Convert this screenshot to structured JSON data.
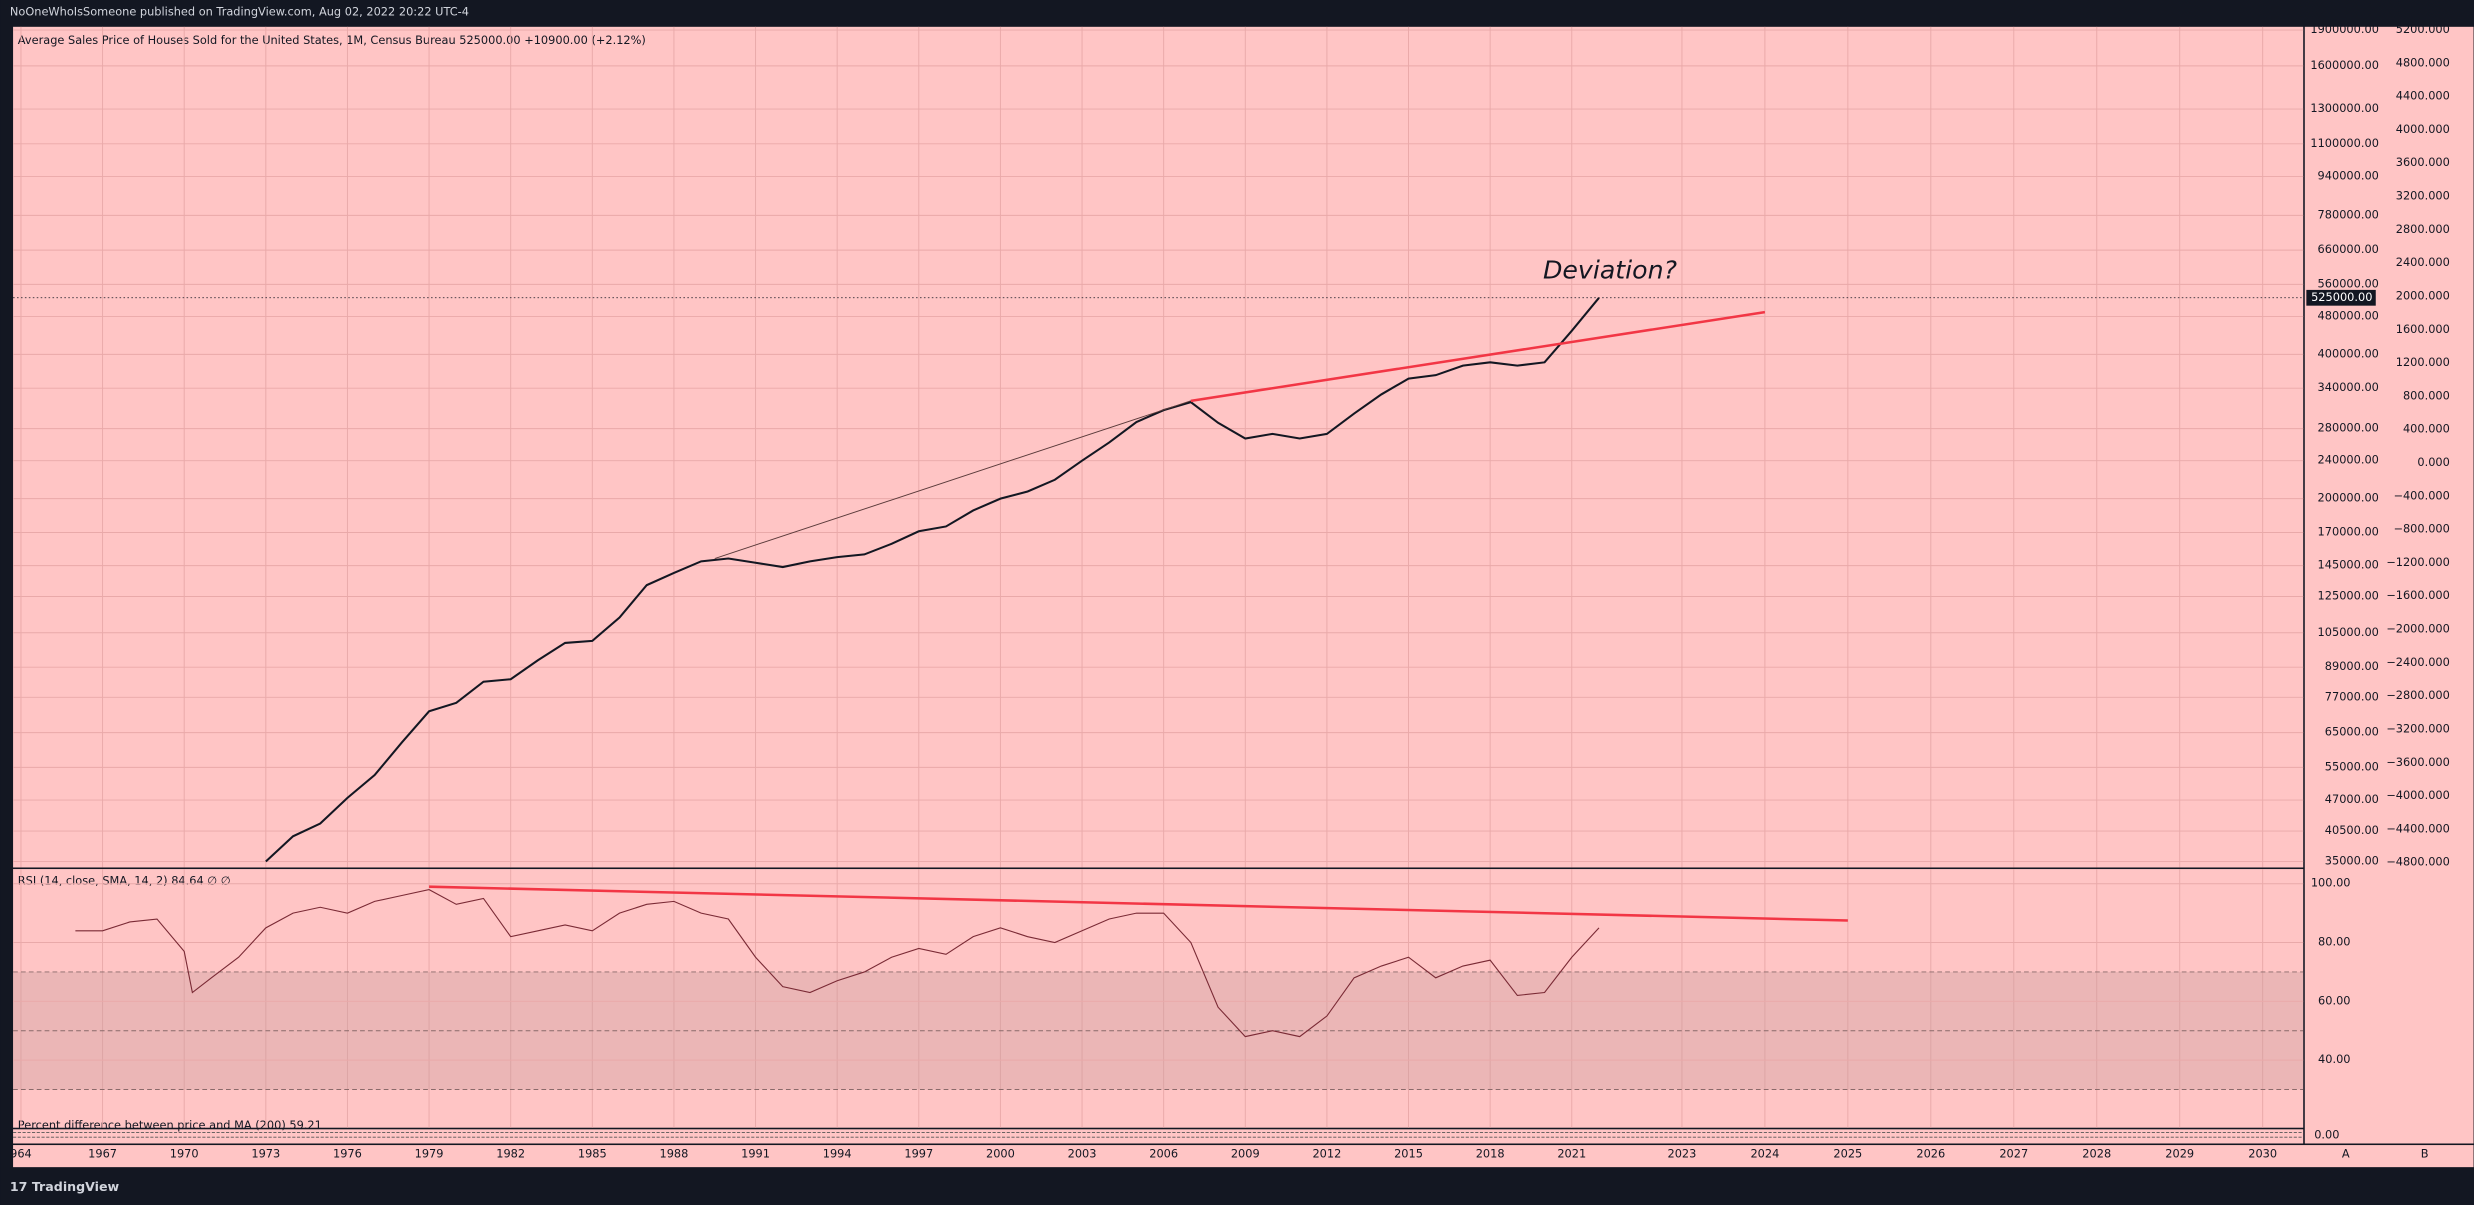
{
  "header": {
    "publisher": "NoOneWhoIsSomeone published on TradingView.com, Aug 02, 2022 20:22 UTC-4"
  },
  "footer": {
    "brand": "17 TradingView",
    "buttons": [
      "A",
      "B"
    ]
  },
  "percent_pane": {
    "title": "Percent difference between price and MA (200)  59.21",
    "yticks": [
      {
        "value": 0,
        "label": "0.00"
      }
    ]
  },
  "chart_data": [
    {
      "type": "line",
      "title": "Average Sales Price of Houses Sold for the United States, 1M, Census Bureau  525000.00  +10900.00 (+2.12%)",
      "log_scale": true,
      "grid": true,
      "color": "#131722",
      "x": [
        1973,
        1974,
        1975,
        1976,
        1977,
        1978,
        1979,
        1980,
        1981,
        1982,
        1983,
        1984,
        1985,
        1986,
        1987,
        1988,
        1989,
        1990,
        1991,
        1992,
        1993,
        1994,
        1995,
        1996,
        1997,
        1998,
        1999,
        2000,
        2001,
        2002,
        2003,
        2004,
        2005,
        2006,
        2007,
        2008,
        2009,
        2010,
        2011,
        2012,
        2013,
        2014,
        2015,
        2016,
        2017,
        2018,
        2019,
        2020,
        2021,
        2022
      ],
      "values": [
        35000,
        39500,
        42000,
        47500,
        53000,
        62000,
        72000,
        75000,
        83000,
        84000,
        92000,
        100000,
        101000,
        113000,
        132000,
        140000,
        148000,
        150000,
        147000,
        144000,
        148000,
        151000,
        153000,
        161000,
        171000,
        175000,
        189000,
        200000,
        207000,
        219000,
        240000,
        262000,
        289000,
        306000,
        318000,
        288000,
        267000,
        273000,
        267000,
        273000,
        301000,
        330000,
        356000,
        362000,
        379000,
        385000,
        379000,
        385000,
        448000,
        525000
      ],
      "ylim": [
        34000,
        1930000
      ],
      "yticks": [
        {
          "value": 1900000,
          "label": "1900000.00"
        },
        {
          "value": 1600000,
          "label": "1600000.00"
        },
        {
          "value": 1300000,
          "label": "1300000.00"
        },
        {
          "value": 1100000,
          "label": "1100000.00"
        },
        {
          "value": 940000,
          "label": "940000.00"
        },
        {
          "value": 780000,
          "label": "780000.00"
        },
        {
          "value": 660000,
          "label": "660000.00"
        },
        {
          "value": 560000,
          "label": "560000.00"
        },
        {
          "value": 480000,
          "label": "480000.00"
        },
        {
          "value": 400000,
          "label": "400000.00"
        },
        {
          "value": 340000,
          "label": "340000.00"
        },
        {
          "value": 280000,
          "label": "280000.00"
        },
        {
          "value": 240000,
          "label": "240000.00"
        },
        {
          "value": 200000,
          "label": "200000.00"
        },
        {
          "value": 170000,
          "label": "170000.00"
        },
        {
          "value": 145000,
          "label": "145000.00"
        },
        {
          "value": 125000,
          "label": "125000.00"
        },
        {
          "value": 105000,
          "label": "105000.00"
        },
        {
          "value": 89000,
          "label": "89000.00"
        },
        {
          "value": 77000,
          "label": "77000.00"
        },
        {
          "value": 65000,
          "label": "65000.00"
        },
        {
          "value": 55000,
          "label": "55000.00"
        },
        {
          "value": 47000,
          "label": "47000.00"
        },
        {
          "value": 40500,
          "label": "40500.00"
        },
        {
          "value": 35000,
          "label": "35000.00"
        }
      ],
      "y2lim": [
        -4857,
        5238
      ],
      "y2ticks": [
        {
          "value": 5200,
          "label": "5200.000"
        },
        {
          "value": 4800,
          "label": "4800.000"
        },
        {
          "value": 4400,
          "label": "4400.000"
        },
        {
          "value": 4000,
          "label": "4000.000"
        },
        {
          "value": 3600,
          "label": "3600.000"
        },
        {
          "value": 3200,
          "label": "3200.000"
        },
        {
          "value": 2800,
          "label": "2800.000"
        },
        {
          "value": 2400,
          "label": "2400.000"
        },
        {
          "value": 2000,
          "label": "2000.000"
        },
        {
          "value": 1600,
          "label": "1600.000"
        },
        {
          "value": 1200,
          "label": "1200.000"
        },
        {
          "value": 800,
          "label": "800.000"
        },
        {
          "value": 400,
          "label": "400.000"
        },
        {
          "value": 0,
          "label": "0.000"
        },
        {
          "value": -400,
          "label": "−400.000"
        },
        {
          "value": -800,
          "label": "−800.000"
        },
        {
          "value": -1200,
          "label": "−1200.000"
        },
        {
          "value": -1600,
          "label": "−1600.000"
        },
        {
          "value": -2000,
          "label": "−2000.000"
        },
        {
          "value": -2400,
          "label": "−2400.000"
        },
        {
          "value": -2800,
          "label": "−2800.000"
        },
        {
          "value": -3200,
          "label": "−3200.000"
        },
        {
          "value": -3600,
          "label": "−3600.000"
        },
        {
          "value": -4000,
          "label": "−4000.000"
        },
        {
          "value": -4400,
          "label": "−4400.000"
        },
        {
          "value": -4800,
          "label": "−4800.000"
        }
      ],
      "last_price": {
        "value": 525000,
        "label": "525000.00"
      },
      "annotation": "Deviation?",
      "trend_lines": [
        {
          "color": "#5a3a3a",
          "x": [
            1989.5,
            2007
          ],
          "values": [
            150000,
            320000
          ]
        },
        {
          "color": "#f23645",
          "x": [
            2007,
            2024
          ],
          "values": [
            320000,
            490000
          ]
        }
      ]
    },
    {
      "type": "line",
      "title": "RSI (14, close, SMA, 14, 2)  84.64  ∅  ∅",
      "grid": true,
      "color": "#7a2a35",
      "x": [
        1966,
        1967,
        1968,
        1969,
        1970,
        1970.3,
        1971,
        1972,
        1973,
        1974,
        1975,
        1976,
        1977,
        1978,
        1979,
        1980,
        1981,
        1982,
        1983,
        1984,
        1985,
        1986,
        1987,
        1988,
        1989,
        1990,
        1991,
        1992,
        1993,
        1994,
        1995,
        1996,
        1997,
        1998,
        1999,
        2000,
        2001,
        2002,
        2003,
        2004,
        2005,
        2006,
        2007,
        2008,
        2009,
        2010,
        2011,
        2012,
        2013,
        2014,
        2015,
        2016,
        2017,
        2018,
        2019,
        2020,
        2021,
        2022
      ],
      "values": [
        84,
        84,
        87,
        88,
        77,
        63,
        68,
        75,
        85,
        90,
        92,
        90,
        94,
        96,
        98,
        93,
        95,
        82,
        84,
        86,
        84,
        90,
        93,
        94,
        90,
        88,
        75,
        65,
        63,
        67,
        70,
        75,
        78,
        76,
        82,
        85,
        82,
        80,
        84,
        88,
        90,
        90,
        80,
        58,
        48,
        50,
        48,
        55,
        68,
        72,
        75,
        68,
        72,
        74,
        62,
        63,
        75,
        85
      ],
      "ylim": [
        17,
        105
      ],
      "yticks": [
        {
          "value": 100,
          "label": "100.00"
        },
        {
          "value": 80,
          "label": "80.00"
        },
        {
          "value": 60,
          "label": "60.00"
        },
        {
          "value": 40,
          "label": "40.00"
        }
      ],
      "band": [
        30,
        70
      ],
      "levels": [
        30,
        50,
        70
      ],
      "trend_lines": [
        {
          "color": "#f23645",
          "x": [
            1979,
            2025
          ],
          "values": [
            99,
            87.5
          ]
        }
      ],
      "xticks": [
        {
          "value": 1964,
          "label": "964"
        },
        1967,
        1970,
        1973,
        1976,
        1979,
        1982,
        1985,
        1988,
        1991,
        1994,
        1997,
        2000,
        2003,
        2006,
        2009,
        2012,
        2015,
        2018,
        2021,
        2023,
        2024,
        2025,
        2026,
        2027,
        2028,
        2029,
        2030
      ]
    }
  ]
}
